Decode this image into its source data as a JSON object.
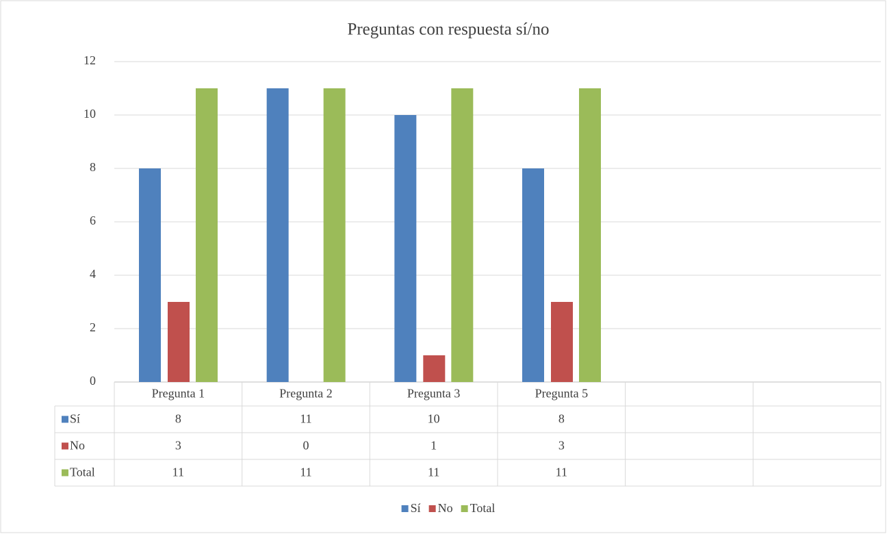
{
  "chart_data": {
    "type": "bar",
    "title": "Preguntas con respuesta sí/no",
    "categories": [
      "Pregunta 1",
      "Pregunta 2",
      "Pregunta 3",
      "Pregunta 5",
      null,
      null
    ],
    "series": [
      {
        "name": "Sí",
        "color": "#4f81bd",
        "values": [
          8,
          11,
          10,
          8,
          null,
          null
        ]
      },
      {
        "name": "No",
        "color": "#c0504d",
        "values": [
          3,
          0,
          1,
          3,
          null,
          null
        ]
      },
      {
        "name": "Total",
        "color": "#9bbb59",
        "values": [
          11,
          11,
          11,
          11,
          null,
          null
        ]
      }
    ],
    "ylim": [
      0,
      12
    ],
    "yticks": [
      0,
      2,
      4,
      6,
      8,
      10,
      12
    ],
    "grid": true,
    "legend": "bottom",
    "data_table": true
  }
}
